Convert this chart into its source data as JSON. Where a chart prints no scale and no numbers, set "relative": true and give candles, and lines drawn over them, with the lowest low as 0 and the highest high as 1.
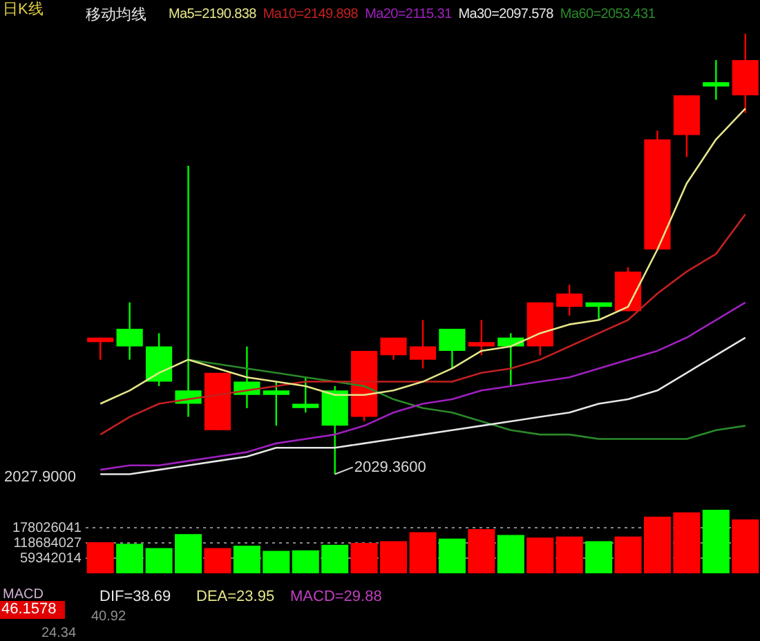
{
  "chart_data": [
    {
      "type": "candlestick",
      "title": "日K线",
      "subtitle": "移动均线",
      "relative": true,
      "legend": "top",
      "categories": [
        null,
        null,
        null,
        null,
        null,
        null,
        null,
        null,
        null,
        null,
        null,
        null,
        null,
        null,
        null,
        null,
        null,
        null,
        null,
        null,
        null,
        null,
        null
      ],
      "ohlc": [
        [
          0.3,
          0.31,
          0.26,
          0.31
        ],
        [
          0.33,
          0.39,
          0.26,
          0.29
        ],
        [
          0.29,
          0.32,
          0.2,
          0.21
        ],
        [
          0.19,
          0.7,
          0.13,
          0.16
        ],
        [
          0.1,
          0.23,
          0.1,
          0.23
        ],
        [
          0.21,
          0.29,
          0.15,
          0.18
        ],
        [
          0.19,
          0.21,
          0.11,
          0.18
        ],
        [
          0.16,
          0.22,
          0.14,
          0.15
        ],
        [
          0.19,
          0.2,
          0,
          0.11
        ],
        [
          0.13,
          0.28,
          0.12,
          0.28
        ],
        [
          0.27,
          0.31,
          0.26,
          0.31
        ],
        [
          0.26,
          0.35,
          0.24,
          0.29
        ],
        [
          0.33,
          0.33,
          0.24,
          0.28
        ],
        [
          0.29,
          0.35,
          0.27,
          0.3
        ],
        [
          0.31,
          0.32,
          0.2,
          0.29
        ],
        [
          0.29,
          0.39,
          0.27,
          0.39
        ],
        [
          0.38,
          0.43,
          0.36,
          0.41
        ],
        [
          0.39,
          0.39,
          0.35,
          0.38
        ],
        [
          0.37,
          0.47,
          0.37,
          0.46
        ],
        [
          0.51,
          0.78,
          0.51,
          0.76
        ],
        [
          0.77,
          0.86,
          0.72,
          0.86
        ],
        [
          0.89,
          0.94,
          0.85,
          0.88
        ],
        [
          0.86,
          1,
          0.82,
          0.94
        ]
      ],
      "colors": [
        "#ff0000",
        "#00ff00",
        "#00ff00",
        "#00ff00",
        "#ff0000",
        "#00ff00",
        "#00ff00",
        "#00ff00",
        "#00ff00",
        "#ff0000",
        "#ff0000",
        "#ff0000",
        "#00ff00",
        "#ff0000",
        "#00ff00",
        "#ff0000",
        "#ff0000",
        "#00ff00",
        "#ff0000",
        "#ff0000",
        "#ff0000",
        "#00ff00",
        "#ff0000"
      ],
      "series": [
        {
          "type": "line",
          "name": "Ma5=2190.838",
          "color": "#e6e68a",
          "values": [
            0.16,
            0.19,
            0.23,
            0.26,
            0.24,
            0.22,
            0.21,
            0.2,
            0.18,
            0.18,
            0.19,
            0.21,
            0.24,
            0.28,
            0.29,
            0.32,
            0.34,
            0.35,
            0.38,
            0.51,
            0.66,
            0.76,
            0.83
          ]
        },
        {
          "type": "line",
          "name": "Ma10=2149.898",
          "color": "#c42020",
          "values": [
            0.09,
            0.13,
            0.16,
            0.17,
            0.18,
            0.19,
            0.2,
            0.21,
            0.21,
            0.21,
            0.21,
            0.21,
            0.21,
            0.23,
            0.24,
            0.26,
            0.29,
            0.32,
            0.35,
            0.41,
            0.46,
            0.5,
            0.59
          ]
        },
        {
          "type": "line",
          "name": "Ma20=2115.31",
          "color": "#a020c0",
          "values": [
            0.01,
            0.02,
            0.02,
            0.03,
            0.04,
            0.05,
            0.07,
            0.08,
            0.09,
            0.11,
            0.14,
            0.16,
            0.17,
            0.19,
            0.2,
            0.21,
            0.22,
            0.24,
            0.26,
            0.28,
            0.31,
            0.35,
            0.39
          ]
        },
        {
          "type": "line",
          "name": "Ma30=2097.578",
          "color": "#e6e6e6",
          "values": [
            0,
            0,
            0.01,
            0.02,
            0.03,
            0.04,
            0.06,
            0.06,
            0.06,
            0.07,
            0.08,
            0.09,
            0.1,
            0.11,
            0.12,
            0.13,
            0.14,
            0.16,
            0.17,
            0.19,
            0.23,
            0.27,
            0.31
          ]
        },
        {
          "type": "line",
          "name": "Ma60=2053.431",
          "color": "#2a8a2a",
          "values": [
            null,
            null,
            null,
            0.26,
            0.25,
            0.24,
            0.23,
            0.22,
            0.21,
            0.2,
            0.17,
            0.15,
            0.14,
            0.12,
            0.1,
            0.09,
            0.09,
            0.08,
            0.08,
            0.08,
            0.08,
            0.1,
            0.11
          ]
        }
      ],
      "annotations": [
        "2027.9000",
        "2029.3600"
      ]
    },
    {
      "type": "bar",
      "categories": [
        null,
        null,
        null,
        null,
        null,
        null,
        null,
        null,
        null,
        null,
        null,
        null,
        null,
        null,
        null,
        null,
        null,
        null,
        null,
        null,
        null,
        null,
        null
      ],
      "values": [
        122000000,
        116000000,
        99000000,
        154000000,
        99000000,
        108000000,
        88000000,
        90000000,
        112000000,
        119000000,
        126000000,
        161000000,
        136000000,
        173000000,
        150000000,
        140000000,
        144000000,
        126000000,
        144000000,
        222000000,
        239000000,
        249000000,
        211000000
      ],
      "colors": [
        "#ff0000",
        "#00ff00",
        "#00ff00",
        "#00ff00",
        "#ff0000",
        "#00ff00",
        "#00ff00",
        "#00ff00",
        "#00ff00",
        "#ff0000",
        "#ff0000",
        "#ff0000",
        "#00ff00",
        "#ff0000",
        "#00ff00",
        "#ff0000",
        "#ff0000",
        "#00ff00",
        "#ff0000",
        "#ff0000",
        "#ff0000",
        "#00ff00",
        "#ff0000"
      ],
      "ylim": [
        0,
        260000000
      ],
      "yticks": [
        59342014,
        118684027,
        178026041
      ],
      "grid": "y"
    },
    {
      "type": "other",
      "title": "MACD",
      "annotations": [
        "DIF=38.69",
        "DEA=23.95",
        "MACD=29.88",
        "46.1578",
        "40.92",
        "24.34"
      ]
    }
  ]
}
